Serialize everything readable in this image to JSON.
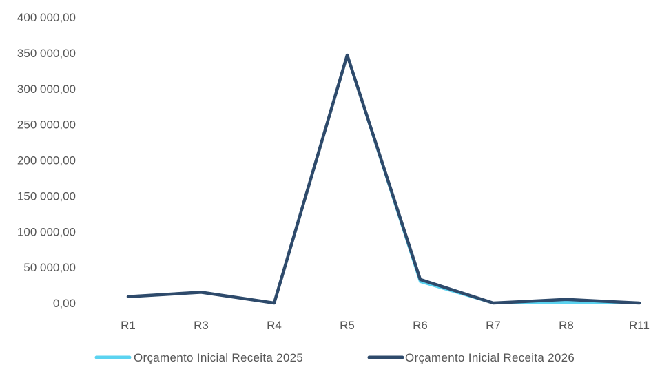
{
  "chart_data": {
    "type": "line",
    "categories": [
      "R1",
      "R3",
      "R4",
      "R5",
      "R6",
      "R7",
      "R8",
      "R11"
    ],
    "y_ticks": [
      "0,00",
      "50 000,00",
      "100 000,00",
      "150 000,00",
      "200 000,00",
      "250 000,00",
      "300 000,00",
      "350 000,00",
      "400 000,00"
    ],
    "ylim": [
      0,
      400000
    ],
    "grid": false,
    "legend_position": "bottom",
    "series": [
      {
        "name": "Orçamento Inicial  Receita 2025",
        "color": "#5bd3f0",
        "values": [
          9000,
          15000,
          0,
          347000,
          30000,
          0,
          1000,
          0
        ]
      },
      {
        "name": "Orçamento Inicial Receita 2026",
        "color": "#2e4a6b",
        "values": [
          9000,
          15000,
          0,
          347000,
          33000,
          0,
          5000,
          0
        ]
      }
    ]
  }
}
